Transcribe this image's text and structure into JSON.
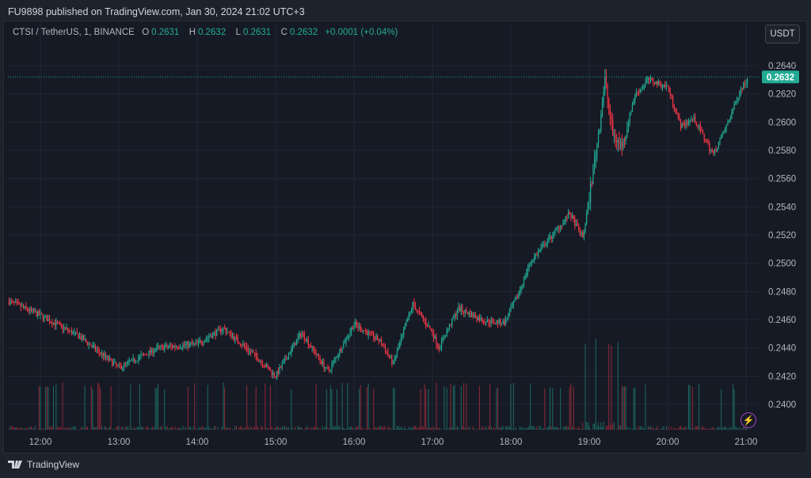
{
  "header": {
    "published": "FU9898 published on TradingView.com, Jan 30, 2024 21:02 UTC+3"
  },
  "legend": {
    "symbol": "CTSI / TetherUS, 1, BINANCE",
    "o_label": "O",
    "o": "0.2631",
    "h_label": "H",
    "h": "0.2632",
    "l_label": "L",
    "l": "0.2631",
    "c_label": "C",
    "c": "0.2632",
    "change": "+0.0001 (+0.04%)"
  },
  "currency_button": "USDT",
  "brand": "TradingView",
  "colors": {
    "up": "#22ab94",
    "down": "#f23645",
    "grid": "#232733",
    "bg": "#161a25",
    "last_price": "#22ab94"
  },
  "chart_data": {
    "type": "candlestick",
    "interval": "1m",
    "last_price": 0.2632,
    "last_price_label": "0.2632",
    "ylim": [
      0.2384,
      0.265
    ],
    "y_ticks": [
      "0.2400",
      "0.2420",
      "0.2440",
      "0.2460",
      "0.2480",
      "0.2500",
      "0.2520",
      "0.2540",
      "0.2560",
      "0.2580",
      "0.2600",
      "0.2620",
      "0.2640"
    ],
    "x_ticks": [
      "12:00",
      "13:00",
      "14:00",
      "15:00",
      "16:00",
      "17:00",
      "18:00",
      "19:00",
      "20:00",
      "21:00"
    ],
    "xlim_hours": [
      11.6,
      21.2
    ],
    "price_path": [
      [
        11.6,
        0.2473
      ],
      [
        12.0,
        0.2463
      ],
      [
        12.5,
        0.2448
      ],
      [
        13.0,
        0.2426
      ],
      [
        13.5,
        0.244
      ],
      [
        14.0,
        0.2443
      ],
      [
        14.33,
        0.2454
      ],
      [
        14.75,
        0.2434
      ],
      [
        15.0,
        0.242
      ],
      [
        15.33,
        0.2451
      ],
      [
        15.67,
        0.2423
      ],
      [
        16.0,
        0.2457
      ],
      [
        16.33,
        0.2445
      ],
      [
        16.5,
        0.2429
      ],
      [
        16.75,
        0.2471
      ],
      [
        17.0,
        0.2451
      ],
      [
        17.08,
        0.244
      ],
      [
        17.33,
        0.2468
      ],
      [
        17.67,
        0.2459
      ],
      [
        17.92,
        0.2458
      ],
      [
        18.08,
        0.2476
      ],
      [
        18.25,
        0.2501
      ],
      [
        18.75,
        0.2535
      ],
      [
        18.92,
        0.2518
      ],
      [
        19.03,
        0.2558
      ],
      [
        19.13,
        0.2597
      ],
      [
        19.2,
        0.263
      ],
      [
        19.3,
        0.2591
      ],
      [
        19.42,
        0.2583
      ],
      [
        19.58,
        0.2619
      ],
      [
        19.75,
        0.263
      ],
      [
        20.0,
        0.2625
      ],
      [
        20.17,
        0.2597
      ],
      [
        20.33,
        0.2603
      ],
      [
        20.58,
        0.2577
      ],
      [
        20.75,
        0.2597
      ],
      [
        20.92,
        0.2622
      ],
      [
        21.03,
        0.2632
      ]
    ]
  }
}
